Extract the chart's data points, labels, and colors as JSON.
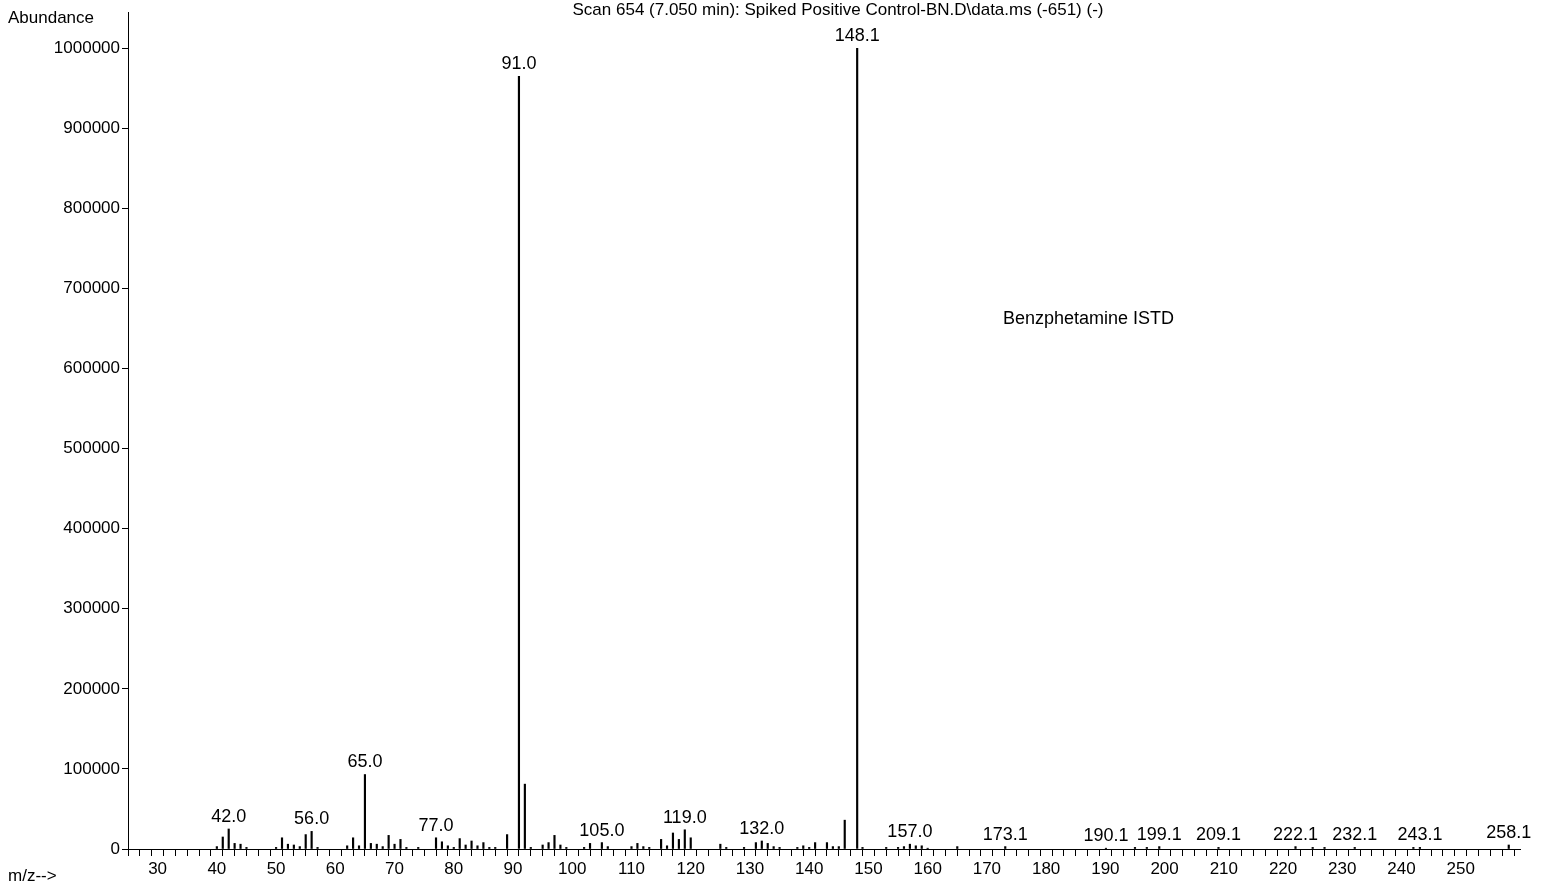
{
  "chart_data": {
    "type": "bar",
    "title": "Scan 654 (7.050 min): Spiked Positive Control-BN.D\\data.ms (-651) (-)",
    "xlabel": "m/z-->",
    "ylabel": "Abundance",
    "x": [
      40,
      41,
      42.0,
      43,
      44,
      45,
      50,
      51,
      52,
      53,
      54,
      55,
      56.0,
      57,
      62,
      63,
      64,
      65.0,
      66,
      67,
      68,
      69,
      70,
      71,
      72,
      74,
      77.0,
      78,
      79,
      80,
      81,
      82,
      83,
      84,
      85,
      86,
      87,
      89,
      91.0,
      92,
      93,
      95,
      96,
      97,
      98,
      99,
      102,
      103,
      105.0,
      106,
      110,
      111,
      112,
      113,
      115,
      116,
      117,
      118,
      119.0,
      120,
      125,
      126,
      129,
      131,
      132.0,
      133,
      134,
      135,
      138,
      139,
      140,
      141,
      143,
      144,
      145,
      146,
      148.1,
      149,
      153,
      155,
      156,
      157.0,
      158,
      159,
      160,
      165,
      173.1,
      190.1,
      195,
      197,
      199.1,
      209.1,
      222.1,
      225,
      227,
      232.1,
      242,
      243.1,
      258.1
    ],
    "values": [
      3000,
      15000,
      25000,
      7000,
      6000,
      2000,
      2000,
      14000,
      6000,
      5000,
      3000,
      18000,
      22000,
      2000,
      4000,
      14000,
      4000,
      93000,
      7000,
      6000,
      3000,
      17000,
      6000,
      12000,
      2000,
      2000,
      14000,
      9000,
      4000,
      2000,
      13000,
      5000,
      10000,
      4000,
      8000,
      2000,
      2000,
      18000,
      965000,
      81000,
      2000,
      5000,
      8000,
      17000,
      5000,
      2000,
      2000,
      7000,
      8000,
      3000,
      3000,
      7000,
      3000,
      2000,
      12000,
      4000,
      20000,
      12000,
      24000,
      14000,
      6000,
      2000,
      2000,
      8000,
      10000,
      7000,
      3000,
      2000,
      2000,
      4000,
      2000,
      8000,
      8000,
      3000,
      3000,
      36000,
      1000000,
      2000,
      2000,
      2000,
      3000,
      6000,
      4000,
      4000,
      1000,
      3000,
      3000,
      1000,
      2000,
      2000,
      3000,
      2000,
      3000,
      2000,
      2000,
      2000,
      2000,
      2000,
      5000
    ],
    "color": "#000000",
    "xlim": [
      25,
      260
    ],
    "xticks": [
      {
        "value": 26,
        "label": null
      },
      {
        "value": 28,
        "label": null
      },
      30,
      {
        "value": 32,
        "label": null
      },
      {
        "value": 34,
        "label": null
      },
      {
        "value": 36,
        "label": null
      },
      {
        "value": 38,
        "label": null
      },
      40,
      {
        "value": 42,
        "label": null
      },
      {
        "value": 44,
        "label": null
      },
      {
        "value": 46,
        "label": null
      },
      {
        "value": 48,
        "label": null
      },
      50,
      {
        "value": 52,
        "label": null
      },
      {
        "value": 54,
        "label": null
      },
      {
        "value": 56,
        "label": null
      },
      {
        "value": 58,
        "label": null
      },
      60,
      {
        "value": 62,
        "label": null
      },
      {
        "value": 64,
        "label": null
      },
      {
        "value": 66,
        "label": null
      },
      {
        "value": 68,
        "label": null
      },
      70,
      {
        "value": 72,
        "label": null
      },
      {
        "value": 74,
        "label": null
      },
      {
        "value": 76,
        "label": null
      },
      {
        "value": 78,
        "label": null
      },
      80,
      {
        "value": 82,
        "label": null
      },
      {
        "value": 84,
        "label": null
      },
      {
        "value": 86,
        "label": null
      },
      {
        "value": 88,
        "label": null
      },
      90,
      {
        "value": 92,
        "label": null
      },
      {
        "value": 94,
        "label": null
      },
      {
        "value": 96,
        "label": null
      },
      {
        "value": 98,
        "label": null
      },
      100,
      {
        "value": 102,
        "label": null
      },
      {
        "value": 104,
        "label": null
      },
      {
        "value": 106,
        "label": null
      },
      {
        "value": 108,
        "label": null
      },
      110,
      {
        "value": 112,
        "label": null
      },
      {
        "value": 114,
        "label": null
      },
      {
        "value": 116,
        "label": null
      },
      {
        "value": 118,
        "label": null
      },
      120,
      {
        "value": 122,
        "label": null
      },
      {
        "value": 124,
        "label": null
      },
      {
        "value": 126,
        "label": null
      },
      {
        "value": 128,
        "label": null
      },
      130,
      {
        "value": 132,
        "label": null
      },
      {
        "value": 134,
        "label": null
      },
      {
        "value": 136,
        "label": null
      },
      {
        "value": 138,
        "label": null
      },
      140,
      {
        "value": 142,
        "label": null
      },
      {
        "value": 144,
        "label": null
      },
      {
        "value": 146,
        "label": null
      },
      {
        "value": 148,
        "label": null
      },
      150,
      {
        "value": 152,
        "label": null
      },
      {
        "value": 154,
        "label": null
      },
      {
        "value": 156,
        "label": null
      },
      {
        "value": 158,
        "label": null
      },
      160,
      {
        "value": 162,
        "label": null
      },
      {
        "value": 164,
        "label": null
      },
      {
        "value": 166,
        "label": null
      },
      {
        "value": 168,
        "label": null
      },
      170,
      {
        "value": 172,
        "label": null
      },
      {
        "value": 174,
        "label": null
      },
      {
        "value": 176,
        "label": null
      },
      {
        "value": 178,
        "label": null
      },
      180,
      {
        "value": 182,
        "label": null
      },
      {
        "value": 184,
        "label": null
      },
      {
        "value": 186,
        "label": null
      },
      {
        "value": 188,
        "label": null
      },
      190,
      {
        "value": 192,
        "label": null
      },
      {
        "value": 194,
        "label": null
      },
      {
        "value": 196,
        "label": null
      },
      {
        "value": 198,
        "label": null
      },
      200,
      {
        "value": 202,
        "label": null
      },
      {
        "value": 204,
        "label": null
      },
      {
        "value": 206,
        "label": null
      },
      {
        "value": 208,
        "label": null
      },
      210,
      {
        "value": 212,
        "label": null
      },
      {
        "value": 214,
        "label": null
      },
      {
        "value": 216,
        "label": null
      },
      {
        "value": 218,
        "label": null
      },
      220,
      {
        "value": 222,
        "label": null
      },
      {
        "value": 224,
        "label": null
      },
      {
        "value": 226,
        "label": null
      },
      {
        "value": 228,
        "label": null
      },
      230,
      {
        "value": 232,
        "label": null
      },
      {
        "value": 234,
        "label": null
      },
      {
        "value": 236,
        "label": null
      },
      {
        "value": 238,
        "label": null
      },
      240,
      {
        "value": 242,
        "label": null
      },
      {
        "value": 244,
        "label": null
      },
      {
        "value": 246,
        "label": null
      },
      {
        "value": 248,
        "label": null
      },
      250,
      {
        "value": 252,
        "label": null
      },
      {
        "value": 254,
        "label": null
      },
      {
        "value": 256,
        "label": null
      },
      {
        "value": 258,
        "label": null
      }
    ],
    "ylim": [
      0,
      1045000
    ],
    "yticks": [
      0,
      100000,
      200000,
      300000,
      400000,
      500000,
      600000,
      700000,
      800000,
      900000,
      1000000
    ],
    "grid": false,
    "legend": false,
    "annotations": [
      {
        "text": "42.0",
        "x": 42.0,
        "y": 25000
      },
      {
        "text": "56.0",
        "x": 56.0,
        "y": 22000
      },
      {
        "text": "65.0",
        "x": 65.0,
        "y": 93000
      },
      {
        "text": "77.0",
        "x": 77.0,
        "y": 14000
      },
      {
        "text": "91.0",
        "x": 91.0,
        "y": 965000
      },
      {
        "text": "105.0",
        "x": 105.0,
        "y": 8000
      },
      {
        "text": "119.0",
        "x": 119.0,
        "y": 24000
      },
      {
        "text": "132.0",
        "x": 132.0,
        "y": 10000
      },
      {
        "text": "148.1",
        "x": 148.1,
        "y": 1000000
      },
      {
        "text": "157.0",
        "x": 157.0,
        "y": 6000
      },
      {
        "text": "173.1",
        "x": 173.1,
        "y": 3000
      },
      {
        "text": "190.1",
        "x": 190.1,
        "y": 1000
      },
      {
        "text": "199.1",
        "x": 199.1,
        "y": 3000
      },
      {
        "text": "209.1",
        "x": 209.1,
        "y": 2000
      },
      {
        "text": "222.1",
        "x": 222.1,
        "y": 3000
      },
      {
        "text": "232.1",
        "x": 232.1,
        "y": 2000
      },
      {
        "text": "243.1",
        "x": 243.1,
        "y": 2000
      },
      {
        "text": "258.1",
        "x": 258.1,
        "y": 5000
      },
      "Benzphetamine ISTD"
    ]
  }
}
